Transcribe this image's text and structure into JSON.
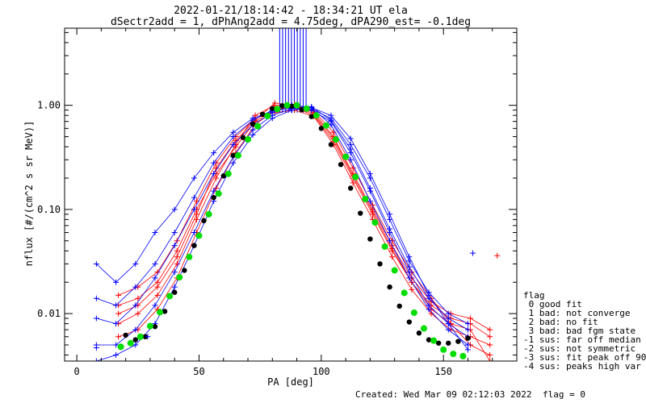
{
  "chart_data": {
    "type": "line",
    "title": "2022-01-21/18:14:42 - 18:34:21 UT ela",
    "subtitle": "dSectr2add = 1, dPhAng2add = 4.75deg, dPA290_est=  -0.1deg",
    "xlabel": "PA [deg]",
    "ylabel": "nflux [#/(cm^2 s sr MeV)]",
    "xlim": [
      -5,
      180
    ],
    "ylim": [
      0.0035,
      5.5
    ],
    "y_scale": "log",
    "x_ticks": [
      0,
      50,
      100,
      150
    ],
    "x_tick_labels": [
      "0",
      "50",
      "100",
      "150"
    ],
    "y_ticks": [
      0.01,
      0.1,
      1.0
    ],
    "y_tick_labels": [
      "0.01",
      "0.10",
      "1.00"
    ],
    "colors": {
      "series_red": "#ff0000",
      "series_blue": "#0000ff",
      "fit_green": "#00dd00",
      "data_black": "#000000",
      "axes": "#000000"
    },
    "series": [
      {
        "color": "red",
        "marker": "plus",
        "x": [
          17,
          25,
          33,
          41,
          49,
          57,
          65,
          73,
          81,
          89,
          97,
          105,
          113,
          121,
          129,
          137,
          145,
          153,
          161,
          169
        ],
        "y": [
          0.012,
          0.014,
          0.02,
          0.04,
          0.1,
          0.22,
          0.4,
          0.7,
          0.9,
          0.95,
          0.8,
          0.45,
          0.2,
          0.09,
          0.04,
          0.02,
          0.012,
          0.009,
          0.008,
          0.006
        ]
      },
      {
        "color": "red",
        "marker": "plus",
        "x": [
          17,
          25,
          33,
          41,
          49,
          57,
          65,
          73,
          81,
          89,
          97,
          105,
          113,
          121,
          129,
          137,
          145,
          153,
          161,
          169
        ],
        "y": [
          0.008,
          0.01,
          0.015,
          0.03,
          0.08,
          0.2,
          0.42,
          0.8,
          1.0,
          1.02,
          0.85,
          0.5,
          0.22,
          0.1,
          0.045,
          0.022,
          0.013,
          0.01,
          0.009,
          0.007
        ]
      },
      {
        "color": "red",
        "marker": "plus",
        "x": [
          17,
          25,
          33,
          41,
          49,
          57,
          65,
          73,
          81,
          89,
          97,
          105,
          113,
          121,
          129,
          137,
          145,
          153,
          161,
          169
        ],
        "y": [
          0.015,
          0.018,
          0.025,
          0.05,
          0.12,
          0.28,
          0.5,
          0.75,
          0.85,
          0.9,
          0.78,
          0.42,
          0.18,
          0.08,
          0.035,
          0.017,
          0.01,
          0.007,
          0.006,
          0.005
        ]
      },
      {
        "color": "red",
        "marker": "plus",
        "x": [
          17,
          25,
          33,
          41,
          49,
          57,
          65,
          73,
          81,
          89,
          97,
          105,
          113,
          121,
          129,
          137,
          145,
          153,
          161,
          169
        ],
        "y": [
          0.006,
          0.007,
          0.011,
          0.022,
          0.06,
          0.16,
          0.35,
          0.65,
          0.9,
          0.98,
          0.88,
          0.55,
          0.25,
          0.11,
          0.05,
          0.025,
          0.014,
          0.008,
          0.005,
          0.004
        ]
      },
      {
        "color": "red",
        "marker": "plus",
        "x": [
          17,
          25,
          33,
          41,
          49,
          57,
          65,
          73,
          81,
          89,
          97,
          105,
          113,
          121,
          129,
          137,
          145,
          153,
          161,
          169
        ],
        "y": [
          0.01,
          0.012,
          0.018,
          0.035,
          0.09,
          0.25,
          0.46,
          0.72,
          1.05,
          1.0,
          0.82,
          0.48,
          0.21,
          0.095,
          0.042,
          0.02,
          0.011,
          0.008,
          0.007,
          0.0035
        ]
      },
      {
        "color": "blue",
        "marker": "plus",
        "x": [
          8,
          16,
          24,
          32,
          40,
          48,
          56,
          64,
          72,
          80,
          88,
          96,
          104,
          112,
          120,
          128,
          136,
          144,
          152,
          160
        ],
        "y": [
          0.03,
          0.02,
          0.03,
          0.06,
          0.1,
          0.2,
          0.35,
          0.55,
          0.75,
          0.88,
          0.95,
          0.9,
          0.7,
          0.35,
          0.15,
          0.06,
          0.025,
          0.012,
          0.008,
          0.006
        ]
      },
      {
        "color": "blue",
        "marker": "plus",
        "x": [
          8,
          16,
          24,
          32,
          40,
          48,
          56,
          64,
          72,
          80,
          88,
          96,
          104,
          112,
          120,
          128,
          136,
          144,
          152,
          160
        ],
        "y": [
          0.014,
          0.012,
          0.018,
          0.03,
          0.06,
          0.13,
          0.28,
          0.5,
          0.72,
          0.9,
          1.0,
          0.95,
          0.65,
          0.3,
          0.12,
          0.05,
          0.022,
          0.011,
          0.007,
          0.005
        ]
      },
      {
        "color": "blue",
        "marker": "plus",
        "x": [
          8,
          16,
          24,
          32,
          40,
          48,
          56,
          64,
          72,
          80,
          88,
          96,
          104,
          112,
          120,
          128,
          136,
          144,
          152,
          160
        ],
        "y": [
          0.009,
          0.008,
          0.012,
          0.022,
          0.045,
          0.1,
          0.22,
          0.42,
          0.65,
          0.85,
          0.98,
          0.97,
          0.72,
          0.38,
          0.16,
          0.065,
          0.028,
          0.014,
          0.009,
          0.007
        ]
      },
      {
        "color": "blue",
        "marker": "plus",
        "x": [
          8,
          16,
          24,
          32,
          40,
          48,
          56,
          64,
          72,
          80,
          88,
          96,
          104,
          112,
          120,
          128,
          136,
          144,
          152,
          160
        ],
        "y": [
          0.005,
          0.005,
          0.007,
          0.012,
          0.025,
          0.06,
          0.15,
          0.32,
          0.58,
          0.8,
          0.93,
          0.92,
          0.75,
          0.42,
          0.2,
          0.08,
          0.032,
          0.016,
          0.01,
          0.008
        ]
      },
      {
        "color": "blue",
        "marker": "plus",
        "x": [
          8,
          16,
          24,
          32,
          40,
          48,
          56,
          64,
          72,
          80,
          88,
          96,
          104,
          112,
          120,
          128,
          136,
          144,
          152,
          160
        ],
        "y": [
          0.0035,
          0.004,
          0.005,
          0.008,
          0.018,
          0.045,
          0.12,
          0.28,
          0.52,
          0.75,
          0.9,
          0.95,
          0.8,
          0.48,
          0.22,
          0.09,
          0.035,
          0.015,
          0.008,
          0.0045
        ]
      },
      {
        "color": "black",
        "marker": "dot",
        "x": [
          20,
          24,
          28,
          32,
          36,
          40,
          44,
          48,
          52,
          56,
          60,
          64,
          68,
          72,
          76,
          80,
          84,
          88,
          92,
          96,
          100,
          104,
          108,
          112,
          116,
          120,
          124,
          128,
          132,
          136,
          140,
          144,
          148,
          152,
          156,
          160
        ],
        "y": [
          0.0062,
          0.0056,
          0.006,
          0.0075,
          0.0105,
          0.016,
          0.026,
          0.045,
          0.078,
          0.13,
          0.21,
          0.33,
          0.49,
          0.66,
          0.82,
          0.93,
          0.99,
          0.98,
          0.91,
          0.78,
          0.6,
          0.42,
          0.27,
          0.16,
          0.092,
          0.052,
          0.03,
          0.018,
          0.0118,
          0.0083,
          0.0065,
          0.0056,
          0.0052,
          0.0052,
          0.0054,
          0.0058
        ]
      },
      {
        "color": "green",
        "marker": "dot",
        "x": [
          18,
          22,
          26,
          30,
          34,
          38,
          42,
          46,
          50,
          54,
          58,
          62,
          66,
          70,
          74,
          78,
          82,
          86,
          90,
          94,
          98,
          102,
          106,
          110,
          114,
          118,
          122,
          126,
          130,
          134,
          138,
          142,
          146,
          150,
          154,
          158
        ],
        "y": [
          0.0048,
          0.0052,
          0.006,
          0.0076,
          0.0103,
          0.0147,
          0.0223,
          0.035,
          0.056,
          0.09,
          0.142,
          0.22,
          0.33,
          0.47,
          0.63,
          0.79,
          0.92,
          1.0,
          1.0,
          0.93,
          0.8,
          0.64,
          0.47,
          0.32,
          0.205,
          0.126,
          0.075,
          0.044,
          0.026,
          0.0158,
          0.0102,
          0.0072,
          0.0055,
          0.0045,
          0.0041,
          0.0039
        ]
      }
    ],
    "extra_points": [
      {
        "x": 8,
        "y": 0.0047,
        "color": "blue"
      },
      {
        "x": 29,
        "y": 0.006,
        "color": "blue"
      },
      {
        "x": 172,
        "y": 0.036,
        "color": "red"
      },
      {
        "x": 162,
        "y": 0.038,
        "color": "blue"
      }
    ],
    "saturated_region": {
      "x_from": 83,
      "x_to": 95,
      "color": "blue"
    },
    "legend": {
      "title": "flag",
      "position": "right",
      "entries": [
        " 0 good fit",
        " 1 bad: not converge",
        " 2 bad: no fit",
        " 3 bad: bad fgm state",
        "-1 sus: far off median",
        "-2 sus: not symmetric",
        "-3 sus: fit peak off 90",
        "-4 sus: peaks high var"
      ]
    },
    "footer": {
      "created": "Created: Wed Mar 09 02:12:03 2022",
      "flag": "flag = 0"
    }
  }
}
